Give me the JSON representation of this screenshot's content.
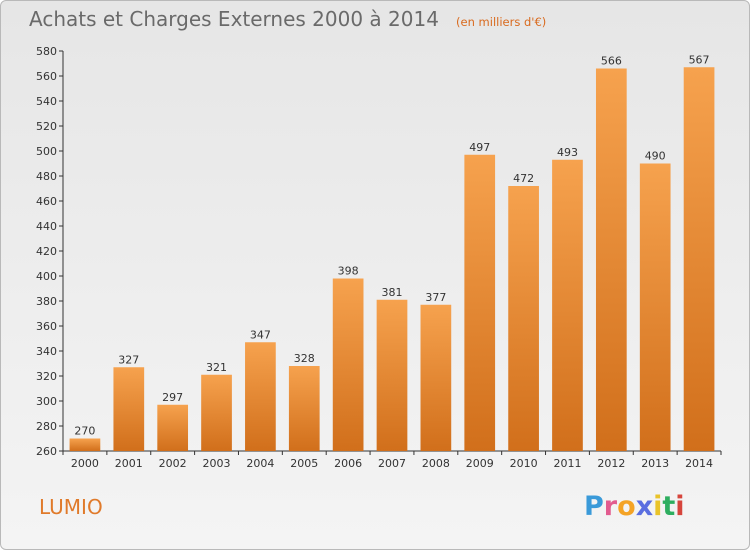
{
  "header": {
    "title": "Achats et Charges Externes 2000 à 2014",
    "unit": "(en milliers d'€)"
  },
  "footer": {
    "commune": "LUMIO",
    "brand": "Proxiti",
    "brand_letters": [
      {
        "ch": "P",
        "color": "#3a9ad9"
      },
      {
        "ch": "r",
        "color": "#e25b8f"
      },
      {
        "ch": "o",
        "color": "#f4a325"
      },
      {
        "ch": "x",
        "color": "#5a6ee0"
      },
      {
        "ch": "i",
        "color": "#e9c32a"
      },
      {
        "ch": "t",
        "color": "#2eae5f"
      },
      {
        "ch": "i",
        "color": "#d6453c"
      }
    ]
  },
  "colors": {
    "bar_top": "#f6a24e",
    "bar_bottom": "#d16f1b",
    "title": "#6a6a6a",
    "accent": "#e07a2a"
  },
  "chart_data": {
    "type": "bar",
    "title": "Achats et Charges Externes 2000 à 2014",
    "subtitle": "(en milliers d'€)",
    "categories": [
      "2000",
      "2001",
      "2002",
      "2003",
      "2004",
      "2005",
      "2006",
      "2007",
      "2008",
      "2009",
      "2010",
      "2011",
      "2012",
      "2013",
      "2014"
    ],
    "values": [
      270,
      327,
      297,
      321,
      347,
      328,
      398,
      381,
      377,
      497,
      472,
      493,
      566,
      490,
      567
    ],
    "ylim": [
      260,
      580
    ],
    "yticks": [
      260,
      280,
      300,
      320,
      340,
      360,
      380,
      400,
      420,
      440,
      460,
      480,
      500,
      520,
      540,
      560,
      580
    ],
    "grid": false,
    "data_labels": true
  }
}
